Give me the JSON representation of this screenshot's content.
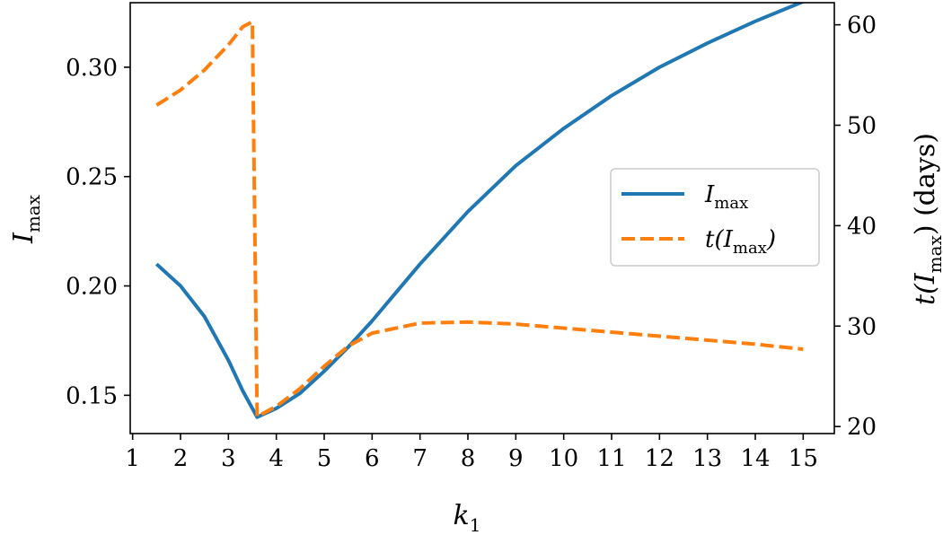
{
  "chart_data": {
    "type": "line",
    "xlabel": "k",
    "xlabel_sub": "1",
    "ylabel_left": "I",
    "ylabel_left_sub": "max",
    "ylabel_right_prefix": "t(I",
    "ylabel_right_sub": "max",
    "ylabel_right_suffix": ")  (days)",
    "xlim": [
      0.95,
      15.65
    ],
    "ylim_left": [
      0.1325,
      0.3295
    ],
    "ylim_right": [
      19.3,
      62.2
    ],
    "xticks": [
      1,
      2,
      3,
      4,
      5,
      6,
      7,
      8,
      9,
      10,
      11,
      12,
      13,
      14,
      15
    ],
    "yticks_left": [
      "0.15",
      "0.20",
      "0.25",
      "0.30"
    ],
    "yticks_right": [
      "20",
      "30",
      "40",
      "50",
      "60"
    ],
    "grid": false,
    "legend": {
      "position": "center-right",
      "entries": [
        {
          "label_main": "I",
          "label_sub": "max"
        },
        {
          "label_prefix": "t(I",
          "label_sub": "max",
          "label_suffix": ")"
        }
      ]
    },
    "series": [
      {
        "name": "I_max",
        "axis": "left",
        "color": "#1f77b4",
        "style": "solid",
        "x": [
          1.5,
          2.0,
          2.5,
          3.0,
          3.3,
          3.6,
          4.0,
          4.5,
          5.0,
          5.5,
          6.0,
          6.5,
          7.0,
          7.5,
          8.0,
          9.0,
          10.0,
          11.0,
          12.0,
          13.0,
          14.0,
          15.0
        ],
        "y": [
          0.21,
          0.2,
          0.186,
          0.166,
          0.152,
          0.14,
          0.144,
          0.151,
          0.161,
          0.172,
          0.184,
          0.197,
          0.21,
          0.222,
          0.234,
          0.255,
          0.272,
          0.287,
          0.3,
          0.311,
          0.321,
          0.33
        ]
      },
      {
        "name": "t(I_max)",
        "axis": "right",
        "color": "#ff7f0e",
        "style": "dashed",
        "x": [
          1.5,
          2.0,
          2.5,
          3.0,
          3.3,
          3.5,
          3.55,
          3.6,
          4.0,
          4.5,
          5.0,
          5.5,
          6.0,
          7.0,
          8.0,
          9.0,
          10.0,
          11.0,
          12.0,
          13.0,
          14.0,
          15.0
        ],
        "y": [
          52.0,
          53.5,
          55.5,
          58.0,
          59.8,
          60.3,
          40.0,
          21.0,
          22.0,
          23.8,
          26.0,
          28.0,
          29.3,
          30.3,
          30.4,
          30.2,
          29.8,
          29.4,
          29.0,
          28.6,
          28.2,
          27.7
        ]
      }
    ]
  }
}
